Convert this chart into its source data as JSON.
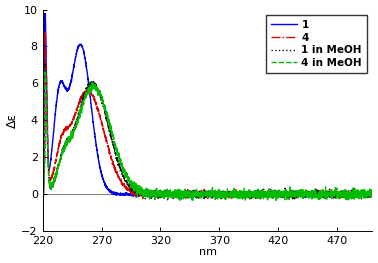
{
  "title": "",
  "xlabel": "nm",
  "ylabel": "Δε",
  "xlim": [
    220,
    500
  ],
  "ylim": [
    -2,
    10
  ],
  "yticks": [
    -2,
    0,
    2,
    4,
    6,
    8,
    10
  ],
  "xticks": [
    220,
    270,
    320,
    370,
    420,
    470
  ],
  "legend": [
    {
      "label": "1",
      "color": "#0000ee",
      "ls": "solid",
      "lw": 1.0
    },
    {
      "label": "4",
      "color": "#dd0000",
      "ls": "dashdot",
      "lw": 1.0
    },
    {
      "label": "1 in MeOH",
      "color": "#111111",
      "ls": "dotted",
      "lw": 1.0
    },
    {
      "label": "4 in MeOH",
      "color": "#00bb00",
      "ls": "dashed",
      "lw": 1.0
    }
  ],
  "seed": 42
}
